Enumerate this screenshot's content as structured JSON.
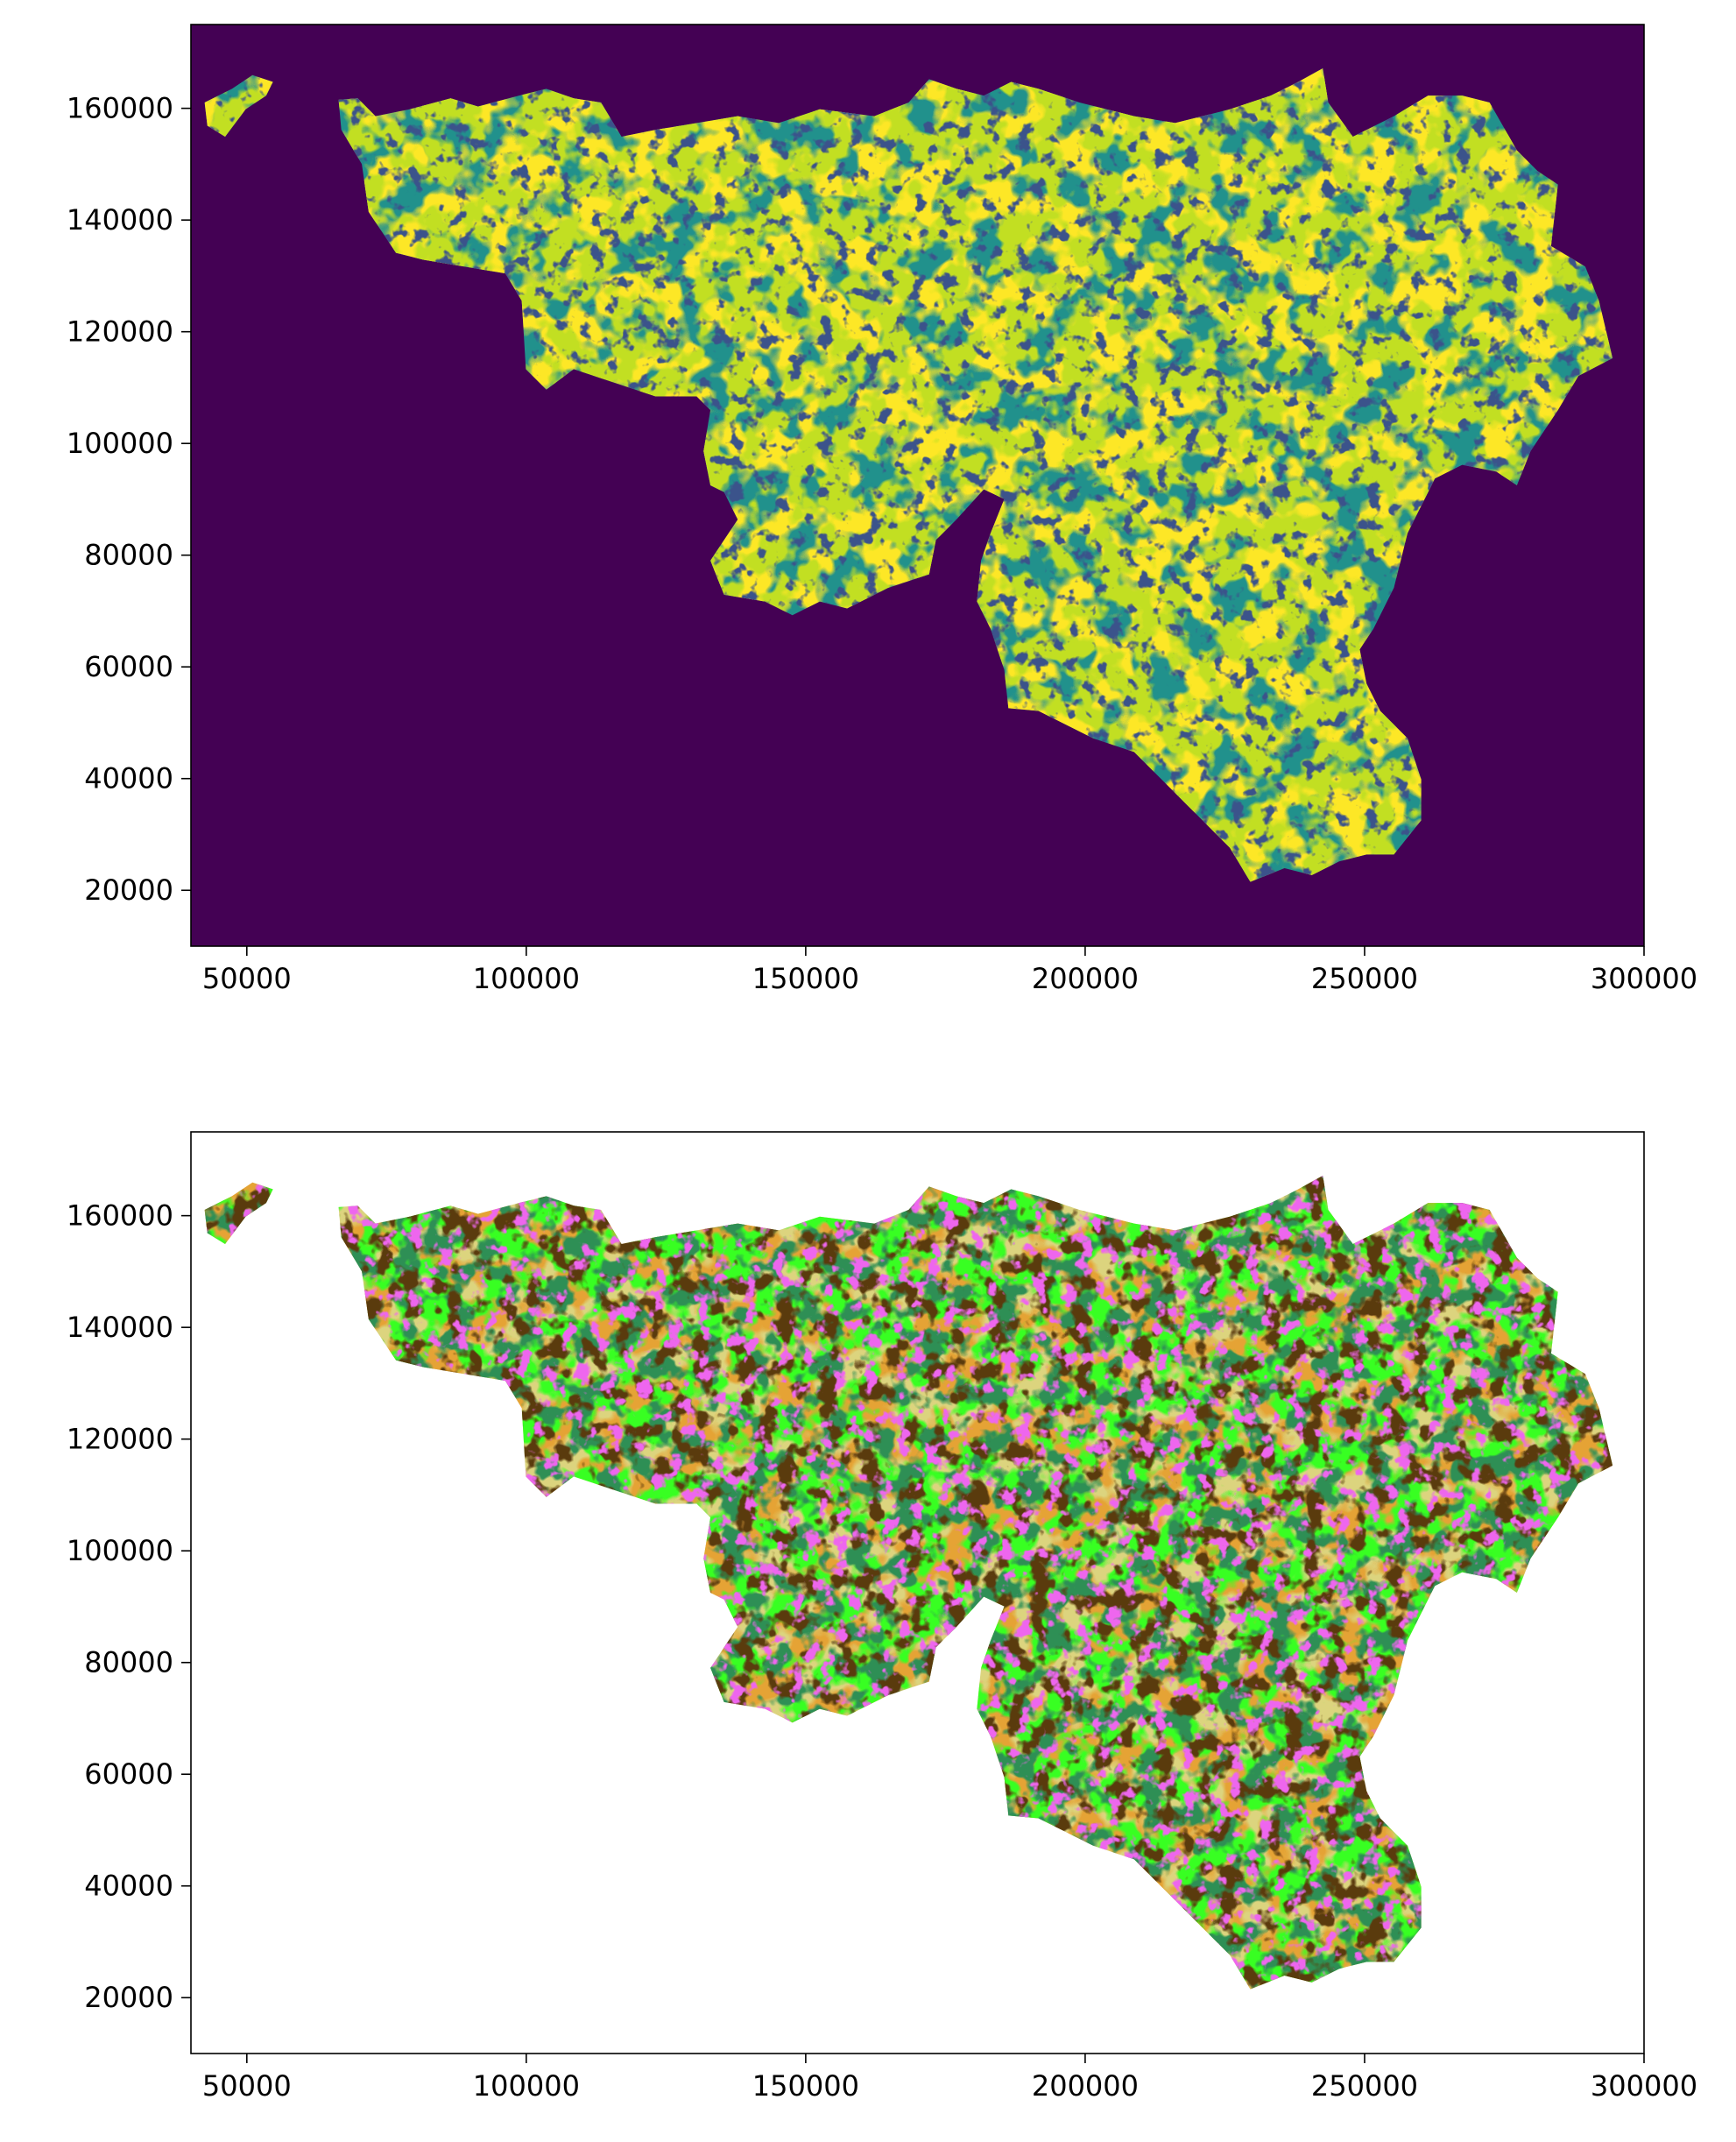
{
  "chart_data": [
    {
      "type": "image",
      "background": "#440154",
      "colors": [
        "#21918c",
        "#fde725",
        "#c2df23",
        "#3b528b"
      ],
      "xlim": [
        40000,
        300000
      ],
      "xticks": [
        50000,
        100000,
        150000,
        200000,
        250000,
        300000
      ],
      "ylim": [
        10000,
        175000
      ],
      "yticks": [
        20000,
        40000,
        60000,
        80000,
        100000,
        120000,
        140000,
        160000
      ]
    },
    {
      "type": "image",
      "background": "#ffffff",
      "colors": [
        "#dcd47e",
        "#e5a334",
        "#39ff22",
        "#2f8f55",
        "#5a3a0e",
        "#ee66ee"
      ],
      "xlim": [
        40000,
        300000
      ],
      "xticks": [
        50000,
        100000,
        150000,
        200000,
        250000,
        300000
      ],
      "ylim": [
        10000,
        175000
      ],
      "yticks": [
        20000,
        40000,
        60000,
        80000,
        100000,
        120000,
        140000,
        160000
      ]
    }
  ]
}
